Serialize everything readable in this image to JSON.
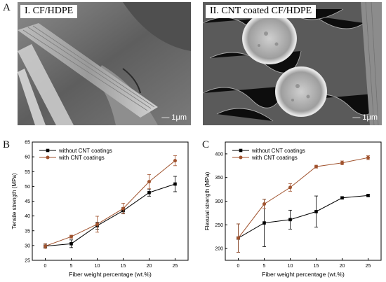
{
  "figure": {
    "panel_letters": [
      "A",
      "B",
      "C"
    ],
    "sem_images": [
      {
        "label": "I. CF/HDPE",
        "scale_bar": "1μm"
      },
      {
        "label": "II. CNT coated CF/HDPE",
        "scale_bar": "1μm"
      }
    ]
  },
  "chart_data": [
    {
      "type": "line",
      "panel": "B",
      "xlabel": "Fiber weight percentage (wt.%)",
      "ylabel": "Tensile strength (MPa)",
      "x": [
        0,
        5,
        10,
        15,
        20,
        25
      ],
      "xlim": [
        -2.5,
        27.5
      ],
      "ylim": [
        25,
        65
      ],
      "xticks": [
        0,
        5,
        10,
        15,
        20,
        25
      ],
      "yticks": [
        25,
        30,
        35,
        40,
        45,
        50,
        55,
        60,
        65
      ],
      "legend_position": "top-left",
      "series": [
        {
          "name": "without CNT coatings",
          "color": "#000000",
          "marker": "square",
          "values": [
            29.8,
            30.6,
            36.7,
            41.8,
            47.9,
            50.8
          ],
          "errors": [
            0.8,
            1.3,
            1.2,
            1.0,
            1.2,
            2.6
          ]
        },
        {
          "name": "with CNT coatings",
          "color": "#a0522d",
          "marker": "circle",
          "values": [
            29.8,
            33.0,
            37.2,
            42.5,
            51.6,
            58.7
          ],
          "errors": [
            0.8,
            0.5,
            2.7,
            1.8,
            2.4,
            1.7
          ]
        }
      ]
    },
    {
      "type": "line",
      "panel": "C",
      "xlabel": "Fiber weight percentage (wt.%)",
      "ylabel": "Flexural strength (MPa)",
      "x": [
        0,
        5,
        10,
        15,
        20,
        25
      ],
      "xlim": [
        -2.5,
        27.5
      ],
      "ylim": [
        175,
        425
      ],
      "xticks": [
        0,
        5,
        10,
        15,
        20,
        25
      ],
      "yticks": [
        200,
        250,
        300,
        350,
        400
      ],
      "legend_position": "top-left",
      "series": [
        {
          "name": "without CNT coatings",
          "color": "#000000",
          "marker": "square",
          "values": [
            222,
            254,
            261,
            278,
            307,
            312
          ],
          "errors": [
            30,
            50,
            20,
            33,
            2,
            2
          ]
        },
        {
          "name": "with CNT coatings",
          "color": "#a0522d",
          "marker": "circle",
          "values": [
            222,
            294,
            329,
            373,
            381,
            392
          ],
          "errors": [
            30,
            10,
            8,
            3,
            4,
            4
          ]
        }
      ]
    }
  ]
}
